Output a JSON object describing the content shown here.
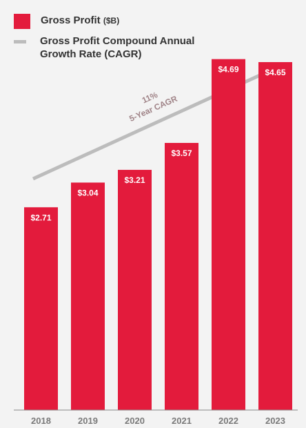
{
  "colors": {
    "bar": "#e31b3c",
    "arrow": "#bcbcbc",
    "cagr_text": "#a08488",
    "value_label": "#ffffff",
    "axis_label": "#7a7a7a",
    "background": "#f3f3f3"
  },
  "legend": {
    "gross_profit_label": "Gross Profit",
    "gross_profit_unit": "($B)",
    "cagr_label_line1": "Gross Profit Compound Annual",
    "cagr_label_line2": "Growth Rate (CAGR)"
  },
  "annotation": {
    "cagr_value": "11%",
    "cagr_period": "5-Year CAGR"
  },
  "chart_data": {
    "type": "bar",
    "title": "",
    "xlabel": "",
    "ylabel": "",
    "categories": [
      "2018",
      "2019",
      "2020",
      "2021",
      "2022",
      "2023"
    ],
    "series": [
      {
        "name": "Gross Profit ($B)",
        "values": [
          2.71,
          3.04,
          3.21,
          3.57,
          4.69,
          4.65
        ],
        "labels": [
          "$2.71",
          "$3.04",
          "$3.21",
          "$3.57",
          "$4.69",
          "$4.65"
        ]
      }
    ],
    "ylim": [
      0,
      5.48
    ],
    "grid": false,
    "legend_position": "top-left"
  }
}
